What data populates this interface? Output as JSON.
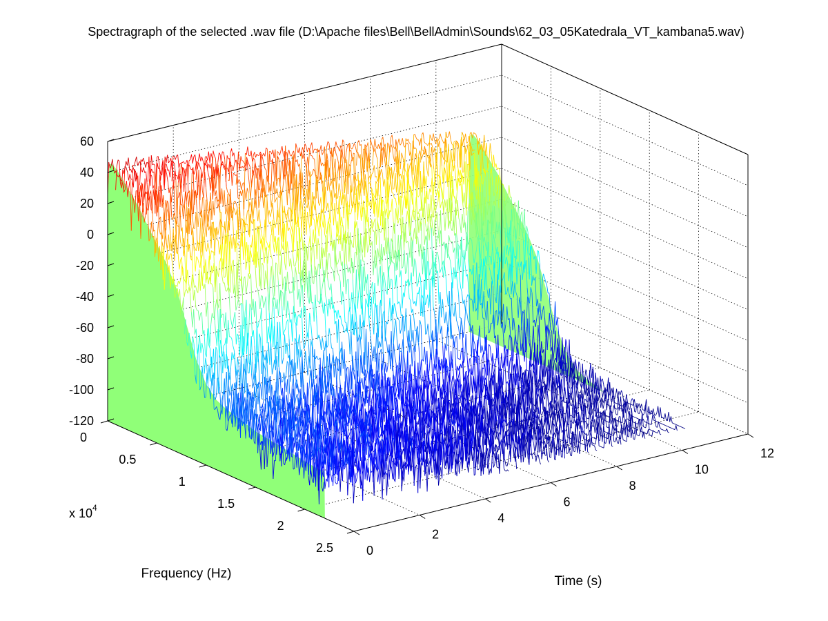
{
  "chart_data": {
    "type": "surface-3d",
    "title": "Spectragraph of the selected .wav file (D:\\Apache files\\Bell\\BellAdmin\\Sounds\\62_03_05Katedrala_VT_kambana5.wav)",
    "xlabel": "Frequency (Hz)",
    "ylabel": "Time (s)",
    "zlabel": "",
    "x_multiplier_label": "x 10",
    "x_multiplier_exponent": "4",
    "xlim": [
      0,
      25000
    ],
    "ylim": [
      0,
      12
    ],
    "zlim": [
      -120,
      60
    ],
    "x_ticks": [
      0,
      0.5,
      1,
      1.5,
      2,
      2.5
    ],
    "x_tick_labels": [
      "0",
      "0.5",
      "1",
      "1.5",
      "2",
      "2.5"
    ],
    "y_ticks": [
      0,
      2,
      4,
      6,
      8,
      10,
      12
    ],
    "y_tick_labels": [
      "0",
      "2",
      "4",
      "6",
      "8",
      "10",
      "12"
    ],
    "z_ticks": [
      60,
      40,
      20,
      0,
      -20,
      -40,
      -60,
      -80,
      -100,
      -120
    ],
    "z_tick_labels": [
      "60",
      "40",
      "20",
      "0",
      "-20",
      "-40",
      "-60",
      "-80",
      "-100",
      "-120"
    ],
    "grid": true,
    "colormap": "jet",
    "floor_color": "#90ff78",
    "profile_freq_khz": [
      0.0,
      0.1,
      0.3,
      0.6,
      1.0,
      1.5,
      2.0,
      3.0,
      4.0,
      5.0,
      6.0,
      7.0,
      8.0,
      9.0,
      10.0,
      11.0,
      12.0,
      13.0,
      14.0,
      15.0,
      16.0,
      17.0,
      18.0,
      19.0,
      20.0,
      21.0,
      22.05
    ],
    "profile_level_db_at_t0": [
      28,
      45,
      47,
      46,
      44,
      40,
      36,
      28,
      18,
      8,
      -2,
      -15,
      -35,
      -55,
      -68,
      -75,
      -78,
      -80,
      -82,
      -84,
      -85,
      -86,
      -87,
      -88,
      -89,
      -90,
      -90
    ],
    "time_decay_db_per_s": 3.5,
    "duration_s": 11.0
  }
}
